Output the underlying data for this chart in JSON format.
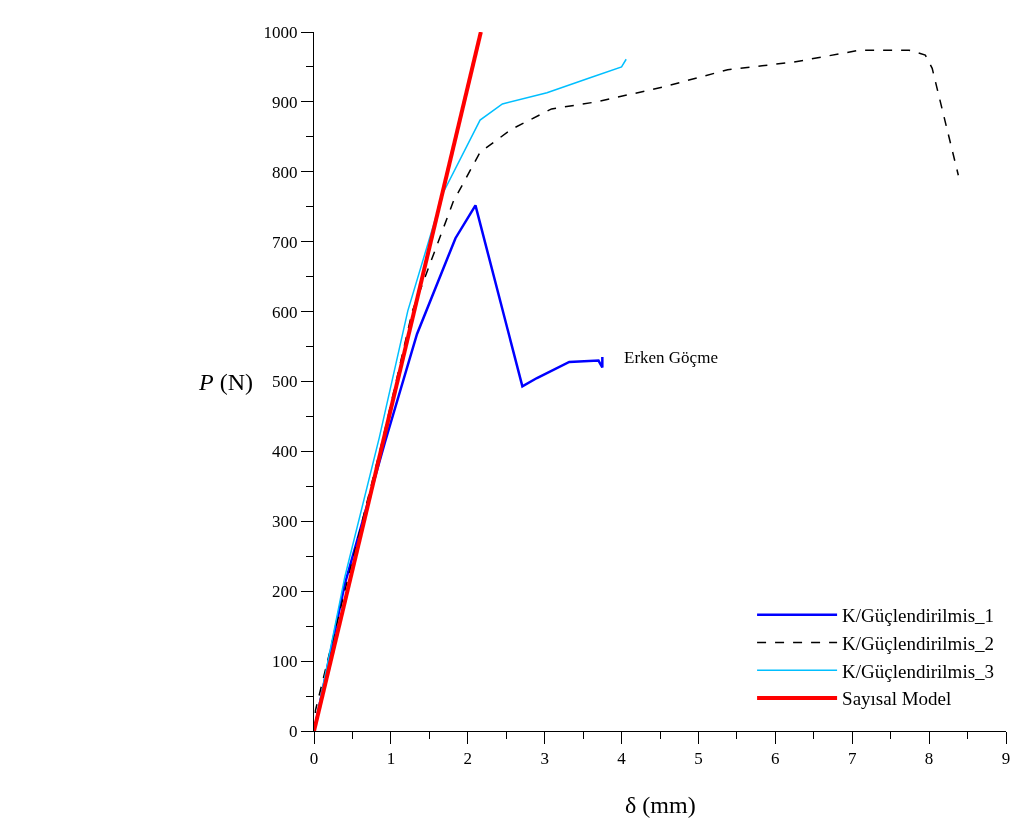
{
  "chart_data": {
    "type": "line",
    "xlabel": "δ (mm)",
    "ylabel": "P (N)",
    "xlim": [
      0,
      9
    ],
    "xticks": [
      0,
      1,
      2,
      3,
      4,
      5,
      6,
      7,
      8,
      9
    ],
    "ylim": [
      0,
      1000
    ],
    "yticks": [
      0,
      100,
      200,
      300,
      400,
      500,
      600,
      700,
      800,
      900,
      1000
    ],
    "legend": "bottom right",
    "annotations": [
      "Erken Göçme"
    ],
    "series": [
      {
        "name": "K/Güçlendirilmis_1",
        "color": "#0000ff",
        "line_style": "solid",
        "x": [
          0,
          0.4,
          0.92,
          1.34,
          1.84,
          2.1,
          2.71,
          2.9,
          3.32,
          3.7,
          3.75,
          3.75
        ],
        "values": [
          0,
          210,
          412,
          568,
          705,
          752,
          493,
          505,
          528,
          530,
          520,
          535
        ]
      },
      {
        "name": "K/Güçlendirilmis_2",
        "color": "#000000",
        "line_style": "dashed",
        "x": [
          0,
          0.02,
          0.4,
          0.9,
          1.28,
          1.81,
          2.16,
          2.57,
          3.09,
          3.67,
          4.53,
          5.38,
          6.24,
          7.1,
          7.74,
          7.95,
          8.04,
          8.38
        ],
        "values": [
          0,
          30,
          200,
          420,
          601,
          757,
          828,
          861,
          890,
          900,
          921,
          946,
          957,
          974,
          974,
          967,
          948,
          795
        ]
      },
      {
        "name": "K/Güçlendirilmis_3",
        "color": "#00bfff",
        "line_style": "solid",
        "x": [
          0,
          0.4,
          0.85,
          1.22,
          1.68,
          2.16,
          2.45,
          3.03,
          3.6,
          4.0,
          4.06
        ],
        "values": [
          0,
          220,
          420,
          601,
          770,
          874,
          897,
          913,
          935,
          950,
          961
        ]
      },
      {
        "name": "Sayısal Model",
        "color": "#ff0000",
        "line_style": "solid",
        "x": [
          0,
          2.17
        ],
        "values": [
          0,
          1000
        ]
      }
    ]
  }
}
